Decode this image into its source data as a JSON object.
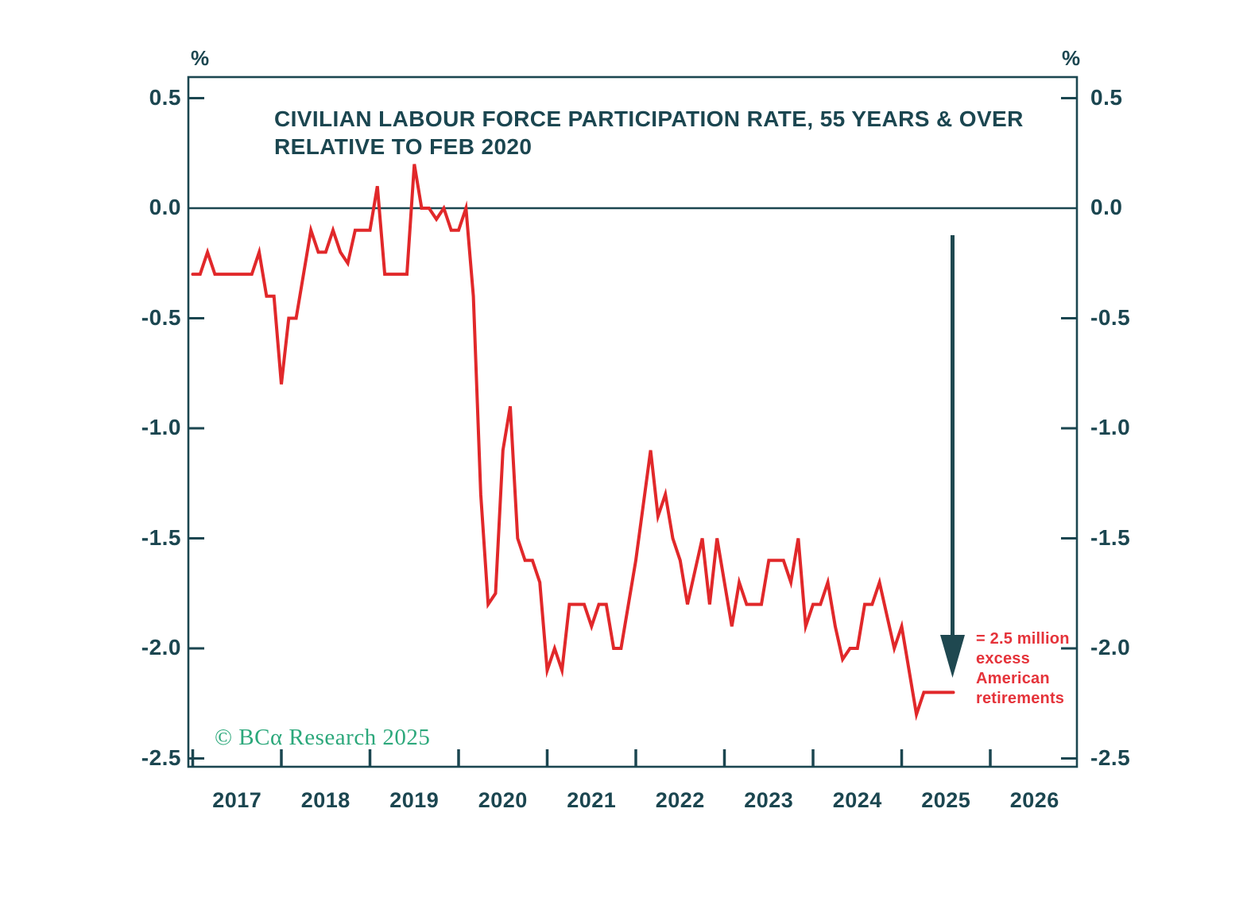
{
  "chart_data": {
    "type": "line",
    "title_lines": [
      "CIVILIAN LABOUR FORCE PARTICIPATION RATE, 55 YEARS & OVER",
      "RELATIVE TO FEB 2020"
    ],
    "unit_left": "%",
    "unit_right": "%",
    "ylim": [
      -2.5,
      0.5
    ],
    "grid": false,
    "legend": false,
    "y_ticks": [
      0.5,
      0.0,
      -0.5,
      -1.0,
      -1.5,
      -2.0,
      -2.5
    ],
    "y_tick_labels": [
      "0.5",
      "0.0",
      "-0.5",
      "-1.0",
      "-1.5",
      "-2.0",
      "-2.5"
    ],
    "x_tick_years": [
      2017,
      2018,
      2019,
      2020,
      2021,
      2022,
      2023,
      2024,
      2025,
      2026
    ],
    "x_tick_labels": [
      "2017",
      "2018",
      "2019",
      "2020",
      "2021",
      "2022",
      "2023",
      "2024",
      "2025",
      "2026"
    ],
    "series": [
      {
        "name": "Civilian labour force participation rate, 55 years & over, relative to Feb 2020 (%)",
        "frequency": "monthly",
        "start_month": "2017-01",
        "end_month": "2025-08",
        "values": [
          -0.3,
          -0.3,
          -0.2,
          -0.3,
          -0.3,
          -0.3,
          -0.3,
          -0.3,
          -0.3,
          -0.2,
          -0.4,
          -0.4,
          -0.8,
          -0.5,
          -0.5,
          -0.3,
          -0.1,
          -0.2,
          -0.2,
          -0.1,
          -0.2,
          -0.25,
          -0.1,
          -0.1,
          -0.1,
          0.1,
          -0.3,
          -0.3,
          -0.3,
          -0.3,
          0.2,
          0.0,
          0.0,
          -0.05,
          0.0,
          -0.1,
          -0.1,
          0.0,
          -0.4,
          -1.3,
          -1.8,
          -1.75,
          -1.1,
          -0.9,
          -1.5,
          -1.6,
          -1.6,
          -1.7,
          -2.1,
          -2.0,
          -2.1,
          -1.8,
          -1.8,
          -1.8,
          -1.9,
          -1.8,
          -1.8,
          -2.0,
          -2.0,
          -1.8,
          -1.6,
          -1.35,
          -1.1,
          -1.4,
          -1.3,
          -1.5,
          -1.6,
          -1.8,
          -1.65,
          -1.5,
          -1.8,
          -1.5,
          -1.7,
          -1.9,
          -1.7,
          -1.8,
          -1.8,
          -1.8,
          -1.6,
          -1.6,
          -1.6,
          -1.7,
          -1.5,
          -1.9,
          -1.8,
          -1.8,
          -1.7,
          -1.9,
          -2.05,
          -2.0,
          -2.0,
          -1.8,
          -1.8,
          -1.7,
          -1.85,
          -2.0,
          -1.9,
          -2.1,
          -2.3,
          -2.2,
          -2.2,
          -2.2,
          -2.2,
          -2.2
        ]
      }
    ],
    "annotation": {
      "lines": [
        "= 2.5 million",
        "excess",
        "American",
        "retirements"
      ]
    },
    "watermark": "© BCα Research 2025",
    "colors": {
      "line": "#e1282a",
      "axis": "#1b4650",
      "arrow": "#1f4850",
      "annotation": "#e5333a",
      "watermark": "#2ca87b",
      "background": "#ffffff"
    }
  }
}
